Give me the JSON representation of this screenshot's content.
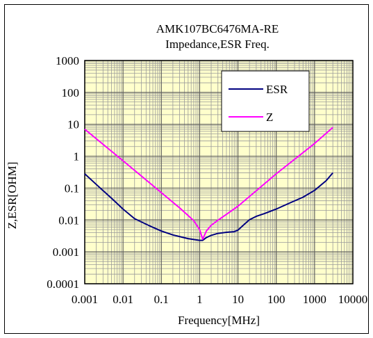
{
  "chart_data": {
    "type": "line",
    "title": "AMK107BC6476MA-RE",
    "subtitle": "Impedance,ESR Freq.",
    "xlabel": "Frequency[MHz]",
    "ylabel": "Z,ESR[OHM]",
    "x_scale": "log",
    "y_scale": "log",
    "xlim": [
      0.001,
      10000
    ],
    "ylim": [
      0.0001,
      1000
    ],
    "x_ticks": [
      "0.001",
      "0.01",
      "0.1",
      "1",
      "10",
      "100",
      "1000",
      "10000"
    ],
    "y_ticks": [
      "1000",
      "100",
      "10",
      "1",
      "0.1",
      "0.01",
      "0.001",
      "0.0001"
    ],
    "grid": true,
    "legend_position": "top-right",
    "plot_background": "#ffffcc",
    "series": [
      {
        "name": "ESR",
        "color": "#000080",
        "x": [
          0.001,
          0.002,
          0.005,
          0.01,
          0.02,
          0.05,
          0.1,
          0.2,
          0.5,
          1.0,
          1.2,
          1.5,
          2,
          3,
          5,
          8,
          10,
          15,
          20,
          30,
          50,
          100,
          200,
          500,
          1000,
          2000,
          3000
        ],
        "y": [
          0.28,
          0.13,
          0.048,
          0.022,
          0.011,
          0.0065,
          0.0045,
          0.0034,
          0.0026,
          0.0023,
          0.0023,
          0.0028,
          0.0033,
          0.0038,
          0.0041,
          0.0043,
          0.0048,
          0.0075,
          0.0102,
          0.013,
          0.016,
          0.022,
          0.032,
          0.052,
          0.085,
          0.17,
          0.3
        ]
      },
      {
        "name": "Z",
        "color": "#ff00ff",
        "x": [
          0.001,
          0.01,
          0.1,
          0.3,
          0.7,
          1.0,
          1.2,
          1.5,
          2,
          3,
          5,
          10,
          100,
          1000,
          3000
        ],
        "y": [
          7.0,
          0.72,
          0.072,
          0.024,
          0.0095,
          0.005,
          0.0025,
          0.0045,
          0.0068,
          0.0098,
          0.015,
          0.027,
          0.28,
          2.5,
          8.0
        ]
      }
    ]
  }
}
